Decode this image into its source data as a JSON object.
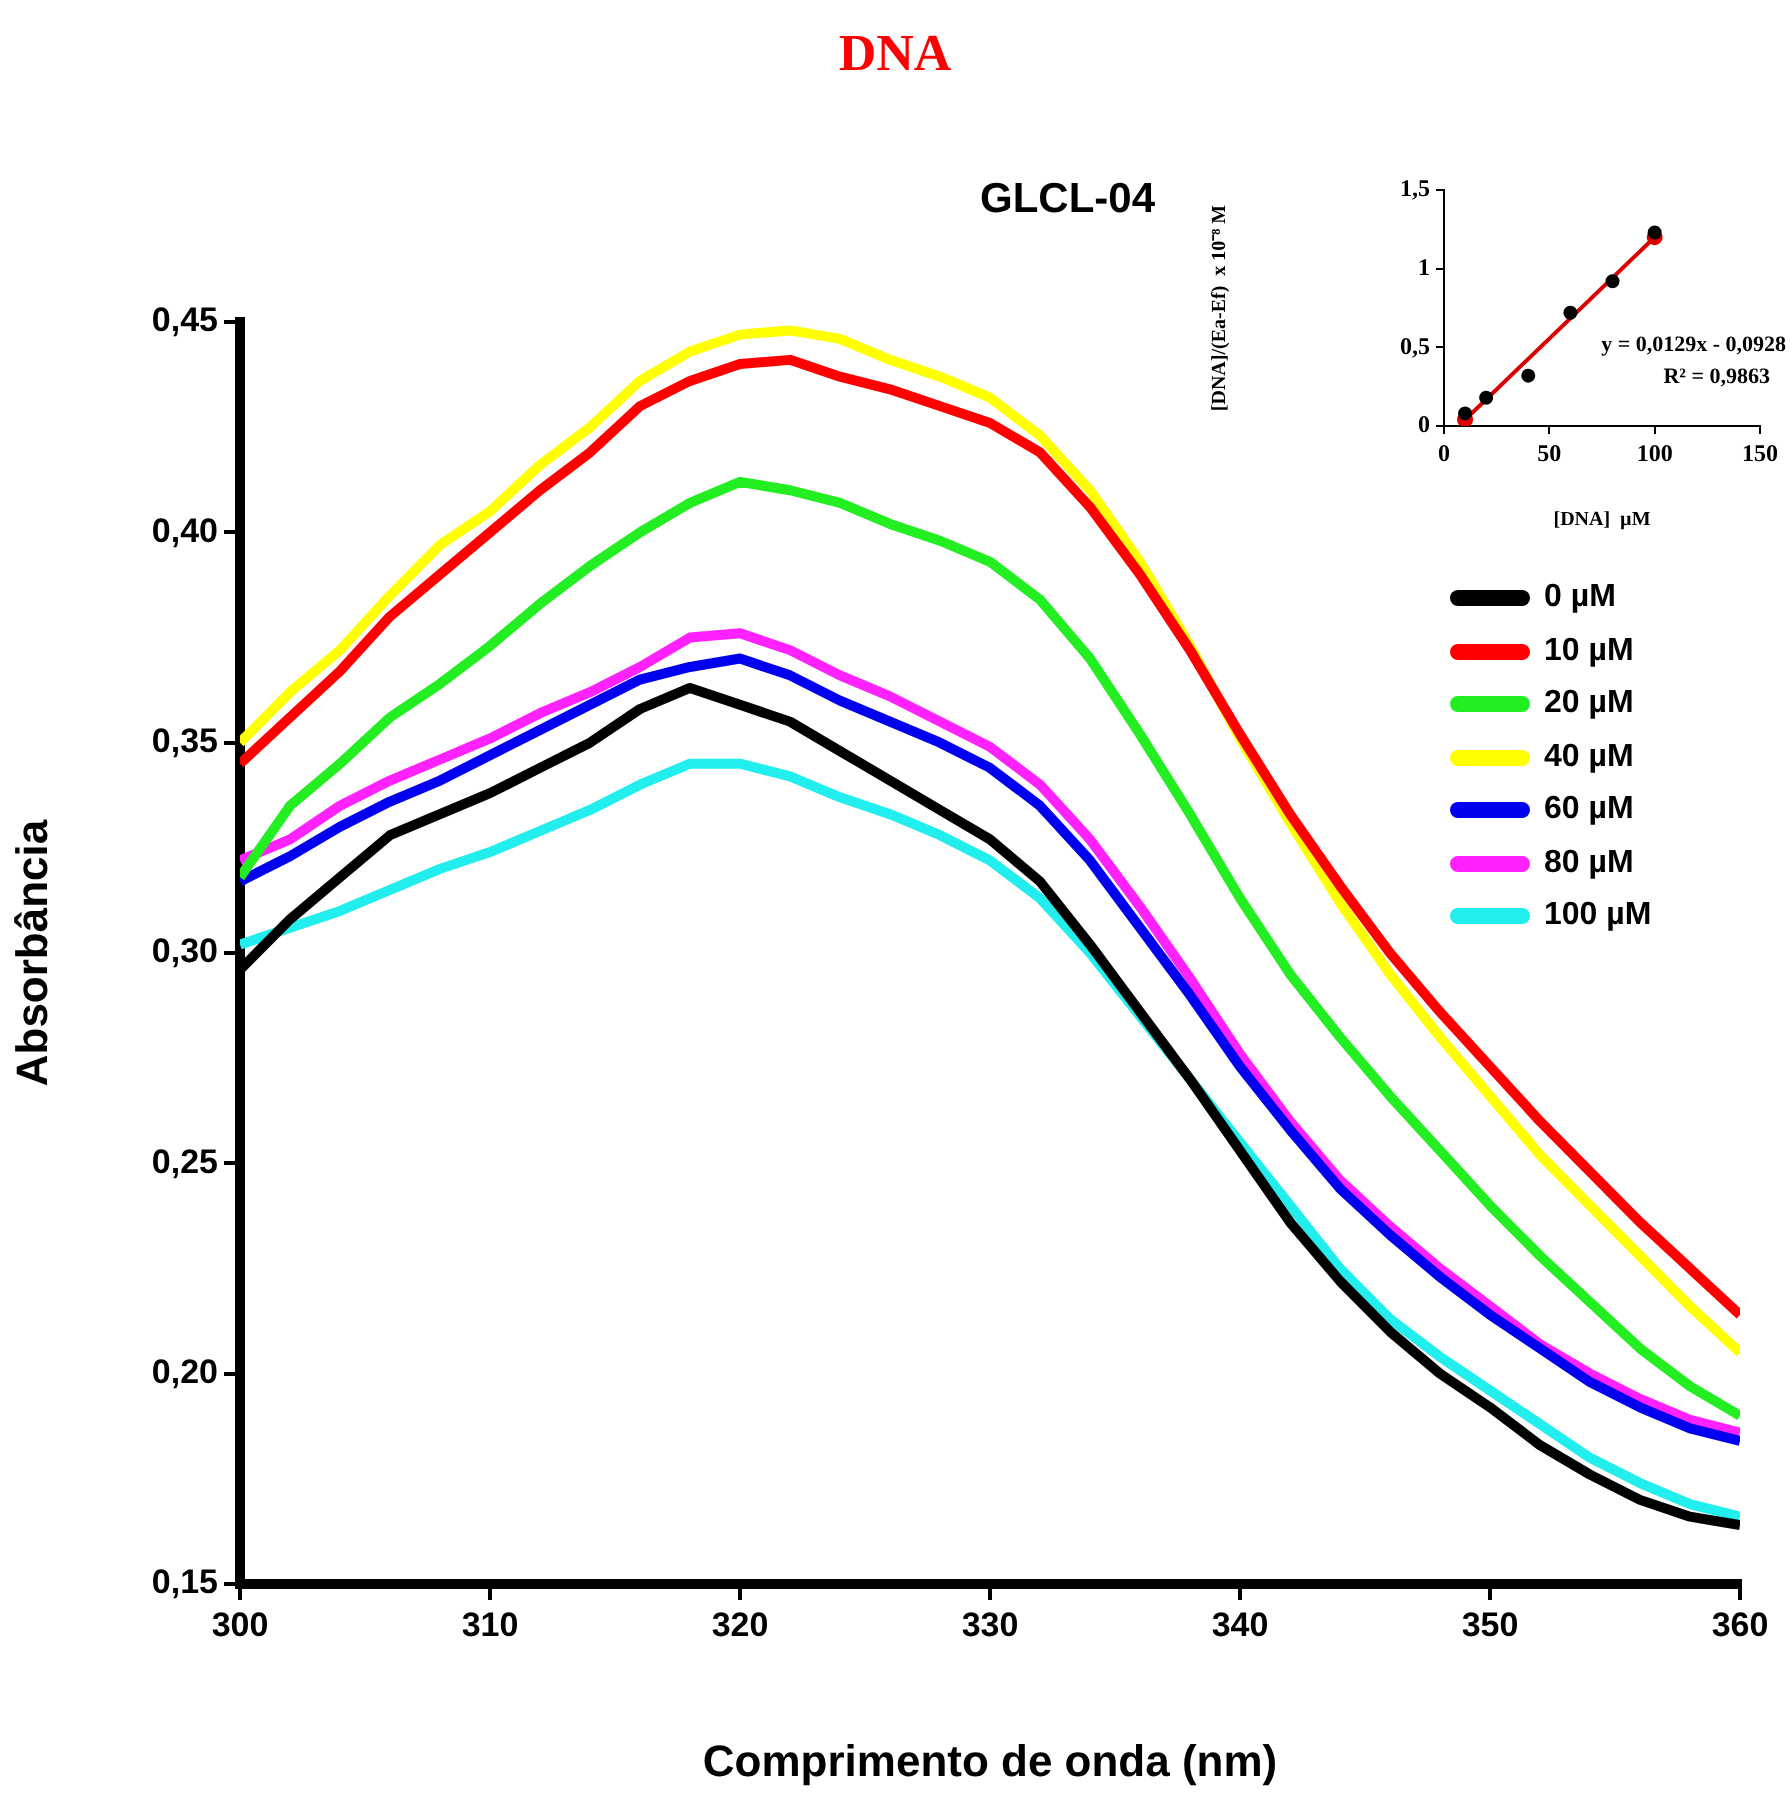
{
  "chart_data": [
    {
      "type": "line",
      "title": "DNA",
      "subtitle": "GLCL-04",
      "xlabel": "Comprimento de onda (nm)",
      "ylabel": "Absorbância",
      "x": [
        300,
        302,
        304,
        306,
        308,
        310,
        312,
        314,
        316,
        318,
        320,
        322,
        324,
        326,
        328,
        330,
        332,
        334,
        336,
        338,
        340,
        342,
        344,
        346,
        348,
        350,
        352,
        354,
        356,
        358,
        360
      ],
      "series": [
        {
          "name": "0 µM",
          "color": "#000000",
          "values": [
            0.296,
            0.308,
            0.318,
            0.328,
            0.333,
            0.338,
            0.344,
            0.35,
            0.358,
            0.363,
            0.359,
            0.355,
            0.348,
            0.341,
            0.334,
            0.327,
            0.317,
            0.302,
            0.286,
            0.27,
            0.253,
            0.236,
            0.222,
            0.21,
            0.2,
            0.192,
            0.183,
            0.176,
            0.17,
            0.166,
            0.164
          ]
        },
        {
          "name": "10 µM",
          "color": "#ff0000",
          "values": [
            0.345,
            0.356,
            0.367,
            0.38,
            0.39,
            0.4,
            0.41,
            0.419,
            0.43,
            0.436,
            0.44,
            0.441,
            0.437,
            0.434,
            0.43,
            0.426,
            0.419,
            0.406,
            0.39,
            0.372,
            0.352,
            0.333,
            0.316,
            0.3,
            0.286,
            0.273,
            0.26,
            0.248,
            0.236,
            0.225,
            0.214
          ]
        },
        {
          "name": "20 µM",
          "color": "#22ee22",
          "values": [
            0.318,
            0.335,
            0.345,
            0.356,
            0.364,
            0.373,
            0.383,
            0.392,
            0.4,
            0.407,
            0.412,
            0.41,
            0.407,
            0.402,
            0.398,
            0.393,
            0.384,
            0.37,
            0.352,
            0.333,
            0.313,
            0.295,
            0.28,
            0.266,
            0.253,
            0.24,
            0.228,
            0.217,
            0.206,
            0.197,
            0.19
          ]
        },
        {
          "name": "40 µM",
          "color": "#ffff00",
          "values": [
            0.35,
            0.362,
            0.372,
            0.385,
            0.397,
            0.405,
            0.416,
            0.425,
            0.436,
            0.443,
            0.447,
            0.448,
            0.446,
            0.441,
            0.437,
            0.432,
            0.423,
            0.41,
            0.393,
            0.373,
            0.351,
            0.331,
            0.312,
            0.295,
            0.28,
            0.266,
            0.252,
            0.24,
            0.228,
            0.216,
            0.205
          ]
        },
        {
          "name": "60 µM",
          "color": "#0000ee",
          "values": [
            0.317,
            0.323,
            0.33,
            0.336,
            0.341,
            0.347,
            0.353,
            0.359,
            0.365,
            0.368,
            0.37,
            0.366,
            0.36,
            0.355,
            0.35,
            0.344,
            0.335,
            0.322,
            0.306,
            0.29,
            0.273,
            0.258,
            0.244,
            0.233,
            0.223,
            0.214,
            0.206,
            0.198,
            0.192,
            0.187,
            0.184
          ]
        },
        {
          "name": "80 µM",
          "color": "#ff22ff",
          "values": [
            0.322,
            0.327,
            0.335,
            0.341,
            0.346,
            0.351,
            0.357,
            0.362,
            0.368,
            0.375,
            0.376,
            0.372,
            0.366,
            0.361,
            0.355,
            0.349,
            0.34,
            0.327,
            0.311,
            0.294,
            0.276,
            0.26,
            0.246,
            0.235,
            0.225,
            0.216,
            0.207,
            0.2,
            0.194,
            0.189,
            0.186
          ]
        },
        {
          "name": "100 µM",
          "color": "#22eeee",
          "values": [
            0.302,
            0.306,
            0.31,
            0.315,
            0.32,
            0.324,
            0.329,
            0.334,
            0.34,
            0.345,
            0.345,
            0.342,
            0.337,
            0.333,
            0.328,
            0.322,
            0.313,
            0.3,
            0.285,
            0.27,
            0.255,
            0.24,
            0.225,
            0.213,
            0.204,
            0.196,
            0.188,
            0.18,
            0.174,
            0.169,
            0.166
          ]
        }
      ],
      "xlim": [
        300,
        360
      ],
      "xticks": [
        300,
        310,
        320,
        330,
        340,
        350,
        360
      ],
      "ylim": [
        0.15,
        0.45
      ],
      "yticks": [
        {
          "value": 0.15,
          "label": "0,15"
        },
        {
          "value": 0.2,
          "label": "0,20"
        },
        {
          "value": 0.25,
          "label": "0,25"
        },
        {
          "value": 0.3,
          "label": "0,30"
        },
        {
          "value": 0.35,
          "label": "0,35"
        },
        {
          "value": 0.4,
          "label": "0,40"
        },
        {
          "value": 0.45,
          "label": "0,45"
        }
      ],
      "grid": false,
      "legend": "right",
      "marker": "none",
      "line_style": "solid"
    },
    {
      "type": "scatter",
      "xlabel": "[DNA]  µM",
      "ylabel": "[DNA]/(Ea-Ef)  x 10⁻⁸ M",
      "annotations": [
        "y = 0,0129x - 0,0928",
        "R² = 0,9863"
      ],
      "series": [
        {
          "color": "#000000",
          "x": [
            10,
            20,
            40,
            60,
            80,
            100
          ],
          "values": [
            0.08,
            0.18,
            0.32,
            0.72,
            0.92,
            1.23
          ]
        },
        {
          "type": "line",
          "color": "#dd0000",
          "x": [
            10,
            100
          ],
          "values": [
            0.04,
            1.2
          ]
        }
      ],
      "xlim": [
        0,
        150
      ],
      "xticks": [
        0,
        50,
        100,
        150
      ],
      "ylim": [
        0,
        1.5
      ],
      "yticks": [
        0,
        {
          "value": 0.5,
          "label": "0,5"
        },
        1,
        {
          "value": 1.5,
          "label": "1,5"
        }
      ],
      "grid": false,
      "legend": false,
      "marker": "circle"
    }
  ]
}
